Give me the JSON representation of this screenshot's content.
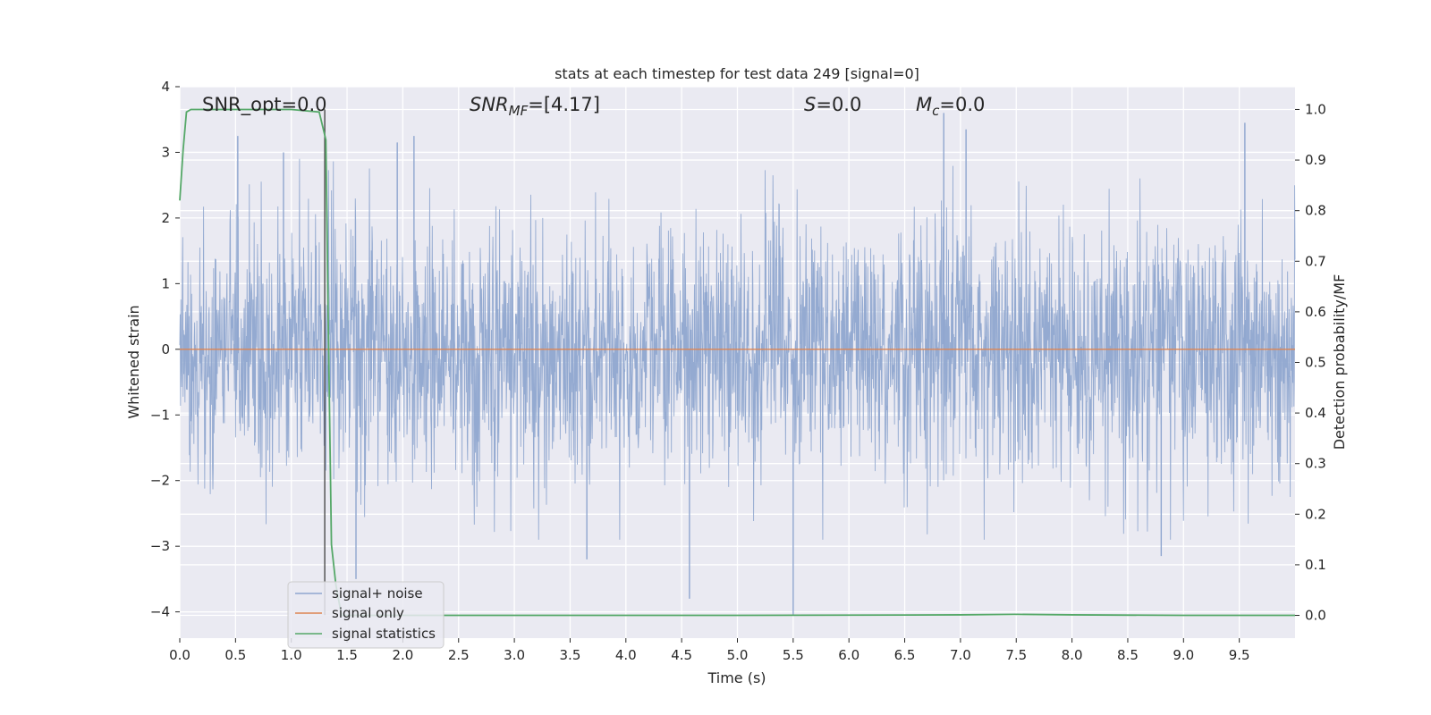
{
  "chart_data": {
    "type": "line",
    "title": "stats at each timestep for test data 249 [signal=0]",
    "xlabel": "Time (s)",
    "ylabel": "Whitened strain",
    "ylabel_right": "Detection probability/MF",
    "xlim": [
      0,
      10
    ],
    "ylim": [
      -4.4,
      4.0
    ],
    "ylim_right": [
      -0.045,
      1.045
    ],
    "x_ticks": [
      "0.0",
      "0.5",
      "1.0",
      "1.5",
      "2.0",
      "2.5",
      "3.0",
      "3.5",
      "4.0",
      "4.5",
      "5.0",
      "5.5",
      "6.0",
      "6.5",
      "7.0",
      "7.5",
      "8.0",
      "8.5",
      "9.0",
      "9.5"
    ],
    "y_ticks": [
      "4",
      "3",
      "2",
      "1",
      "0",
      "−1",
      "−2",
      "−3",
      "−4"
    ],
    "y_ticks_right": [
      "1.0",
      "0.9",
      "0.8",
      "0.7",
      "0.6",
      "0.5",
      "0.4",
      "0.3",
      "0.2",
      "0.1",
      "0.0"
    ],
    "grid": true,
    "legend_position": "lower-left",
    "annotations": {
      "snr_opt": "SNR_opt=0.0",
      "snr_mf_name": "SNR",
      "snr_mf_sub": "MF",
      "snr_mf_value": "=[4.17]",
      "s_name": "S",
      "s_value": "=0.0",
      "mc_name": "M",
      "mc_sub": "c",
      "mc_value": "=0.0"
    },
    "vertical_line_x": 1.3,
    "series": [
      {
        "name": "signal+ noise",
        "axis": "left",
        "color": "#8fa6cf",
        "description": "dense whitened noise trace, roughly Gaussian with amplitude about +/-2 and peaks to +/-3.6",
        "peaks": [
          {
            "x": 0.52,
            "y": 3.25
          },
          {
            "x": 0.93,
            "y": 3.0
          },
          {
            "x": 1.95,
            "y": 3.15
          },
          {
            "x": 2.1,
            "y": 3.25
          },
          {
            "x": 6.85,
            "y": 3.6
          },
          {
            "x": 7.05,
            "y": 3.35
          },
          {
            "x": 9.55,
            "y": 3.45
          },
          {
            "x": 1.58,
            "y": -3.5
          },
          {
            "x": 4.57,
            "y": -3.8
          },
          {
            "x": 5.5,
            "y": -4.05
          },
          {
            "x": 3.65,
            "y": -3.2
          },
          {
            "x": 8.8,
            "y": -3.15
          }
        ]
      },
      {
        "name": "signal only",
        "axis": "left",
        "color": "#dd8452",
        "x": [
          0,
          10
        ],
        "y": [
          0,
          0
        ]
      },
      {
        "name": "signal statistics",
        "axis": "right",
        "color": "#55a868",
        "x": [
          0.0,
          0.03,
          0.06,
          0.1,
          0.2,
          0.5,
          1.0,
          1.25,
          1.31,
          1.33,
          1.36,
          1.4,
          1.45,
          2.0,
          5.0,
          7.0,
          7.5,
          8.0,
          9.0,
          10.0
        ],
        "y": [
          0.82,
          0.92,
          0.995,
          1.0,
          1.0,
          1.0,
          1.0,
          0.995,
          0.94,
          0.6,
          0.14,
          0.06,
          0.0,
          0.0,
          0.0,
          0.001,
          0.002,
          0.001,
          0.0,
          0.0
        ]
      }
    ]
  }
}
